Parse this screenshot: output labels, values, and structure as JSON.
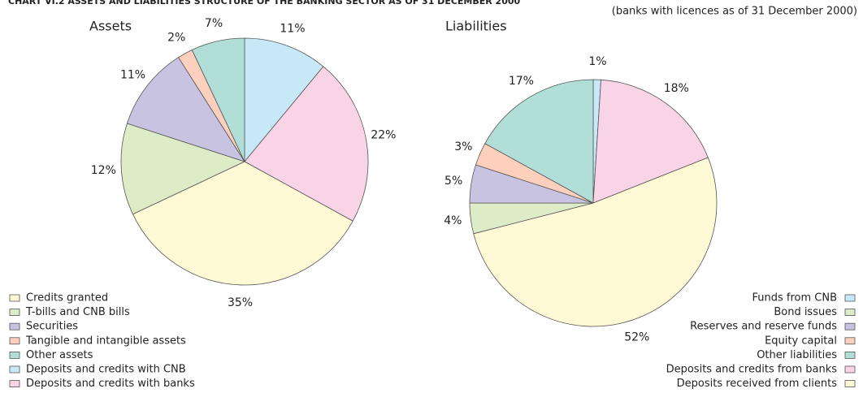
{
  "title": "CHART VI.2 ASSETS AND LIABILITIES STRUCTURE OF THE BANKING SECTOR AS OF 31 DECEMBER 2000",
  "subtitle": "(banks with licences as of 31 December 2000)",
  "chart_data": [
    {
      "type": "pie",
      "title": "Assets",
      "categories": [
        "Credits granted",
        "T-bills and CNB bills",
        "Securities",
        "Tangible and intangible assets",
        "Other assets",
        "Deposits and credits with CNB",
        "Deposits and credits with banks"
      ],
      "values": [
        35,
        12,
        11,
        2,
        7,
        11,
        22
      ],
      "value_labels": [
        "35%",
        "12%",
        "11%",
        "2%",
        "7%",
        "11%",
        "22%"
      ],
      "colors": [
        "#fff9d5",
        "#ddebc6",
        "#c9c3e2",
        "#fcd0bd",
        "#b2ded8",
        "#c6e8f7",
        "#f9d3e6"
      ]
    },
    {
      "type": "pie",
      "title": "Liabilities",
      "categories": [
        "Funds from CNB",
        "Bond issues",
        "Reserves and reserve funds",
        "Equity capital",
        "Other liabilities",
        "Deposits and credits from banks",
        "Deposits received from clients"
      ],
      "values": [
        1,
        4,
        5,
        3,
        17,
        18,
        52
      ],
      "value_labels": [
        "1%",
        "4%",
        "5%",
        "3%",
        "17%",
        "18%",
        "52%"
      ],
      "colors": [
        "#c6e8f7",
        "#ddebc6",
        "#c9c3e2",
        "#fcd0bd",
        "#b2ded8",
        "#f9d3e6",
        "#fff9d5"
      ]
    }
  ]
}
